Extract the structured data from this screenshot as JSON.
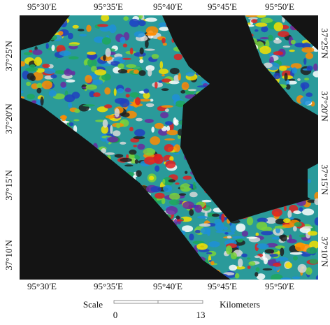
{
  "map": {
    "top_labels": [
      "95°30′E",
      "95°35′E",
      "95°40′E",
      "95°45′E",
      "95°50′E"
    ],
    "bottom_labels": [
      "95°30′E",
      "95°35′E",
      "95°40′E",
      "95°45′E",
      "95°50′E"
    ],
    "left_labels": [
      "37°25′N",
      "37°20′N",
      "37°15′N",
      "37°10′N"
    ],
    "right_labels": [
      "37°25′N",
      "37°20′N",
      "37°15′N",
      "37°10′N"
    ],
    "scale": {
      "label": "Scale",
      "unit": "Kilometers",
      "ticks": [
        0,
        13
      ]
    }
  }
}
